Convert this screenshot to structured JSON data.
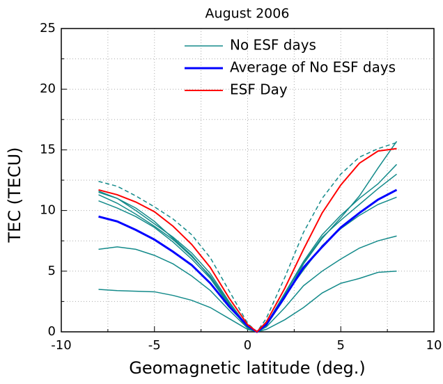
{
  "chart_data": {
    "type": "line",
    "title": "August 2006",
    "xlabel": "Geomagnetic latitude (deg.)",
    "ylabel": "TEC (TECU)",
    "x": [
      -8,
      -7,
      -6,
      -5,
      -4,
      -3,
      -2,
      -1,
      0,
      0.5,
      1,
      2,
      3,
      4,
      5,
      6,
      7,
      8
    ],
    "series": [
      {
        "name": "No ESF days",
        "color": "#138a8a",
        "values": [
          11.5,
          11.0,
          10.0,
          8.9,
          7.8,
          6.5,
          4.8,
          2.5,
          0.4,
          0,
          0.6,
          3.2,
          5.8,
          8.0,
          9.6,
          11.0,
          12.2,
          13.8
        ]
      },
      {
        "name": "No ESF days",
        "color": "#138a8a",
        "values": [
          10.8,
          10.2,
          9.5,
          8.6,
          7.4,
          6.0,
          4.4,
          2.2,
          0.3,
          0,
          0.5,
          2.8,
          5.6,
          7.7,
          9.4,
          11.2,
          13.5,
          15.7
        ]
      },
      {
        "name": "No ESF days",
        "color": "#138a8a",
        "values": [
          11.3,
          10.6,
          9.7,
          8.7,
          7.6,
          6.2,
          4.6,
          2.4,
          0.4,
          0,
          0.6,
          3.0,
          5.1,
          7.1,
          8.5,
          9.6,
          10.5,
          11.1
        ]
      },
      {
        "name": "No ESF days",
        "color": "#138a8a",
        "values": [
          11.6,
          11.0,
          10.2,
          9.1,
          7.7,
          6.3,
          4.5,
          2.3,
          0.3,
          0,
          0.6,
          3.1,
          5.7,
          7.8,
          9.2,
          10.5,
          11.8,
          13.0
        ]
      },
      {
        "name": "No ESF days",
        "color": "#138a8a",
        "values": [
          6.8,
          7.0,
          6.8,
          6.3,
          5.6,
          4.6,
          3.4,
          1.8,
          0.3,
          0,
          0.4,
          2.0,
          3.8,
          5.0,
          6.0,
          6.9,
          7.5,
          7.9
        ]
      },
      {
        "name": "No ESF days",
        "color": "#138a8a",
        "values": [
          3.5,
          3.4,
          3.35,
          3.3,
          3.0,
          2.6,
          2.0,
          1.1,
          0.2,
          0,
          0.2,
          1.0,
          2.0,
          3.2,
          4.0,
          4.4,
          4.9,
          5.0
        ]
      },
      {
        "name": "No ESF days",
        "color": "#138a8a",
        "dashed": true,
        "values": [
          12.4,
          12.0,
          11.2,
          10.3,
          9.3,
          8.0,
          6.1,
          3.4,
          0.7,
          0,
          1.1,
          4.5,
          8.2,
          11.0,
          13.0,
          14.4,
          15.1,
          15.6
        ]
      },
      {
        "name": "Average of No ESF days",
        "color": "#0000ff",
        "width": 3,
        "values": [
          9.5,
          9.1,
          8.4,
          7.6,
          6.6,
          5.5,
          4.0,
          2.1,
          0.5,
          0,
          0.6,
          2.9,
          5.3,
          7.0,
          8.6,
          9.8,
          10.9,
          11.7
        ]
      },
      {
        "name": "ESF Day",
        "color": "#ff0000",
        "width": 2,
        "values": [
          11.7,
          11.3,
          10.7,
          9.9,
          8.7,
          7.2,
          5.3,
          2.8,
          0.6,
          0,
          0.8,
          3.6,
          6.8,
          9.8,
          12.1,
          13.9,
          14.9,
          15.1
        ]
      }
    ],
    "xlim": [
      -10,
      10
    ],
    "xticks": [
      -10,
      -5,
      0,
      5,
      10
    ],
    "xminor": [
      -7.5,
      -2.5,
      2.5,
      7.5
    ],
    "ylim": [
      0,
      25
    ],
    "yticks": [
      0,
      5,
      10,
      15,
      20,
      25
    ],
    "yminor": [
      2.5,
      7.5,
      12.5,
      17.5,
      22.5
    ],
    "grid": true,
    "legend": "upper center"
  }
}
